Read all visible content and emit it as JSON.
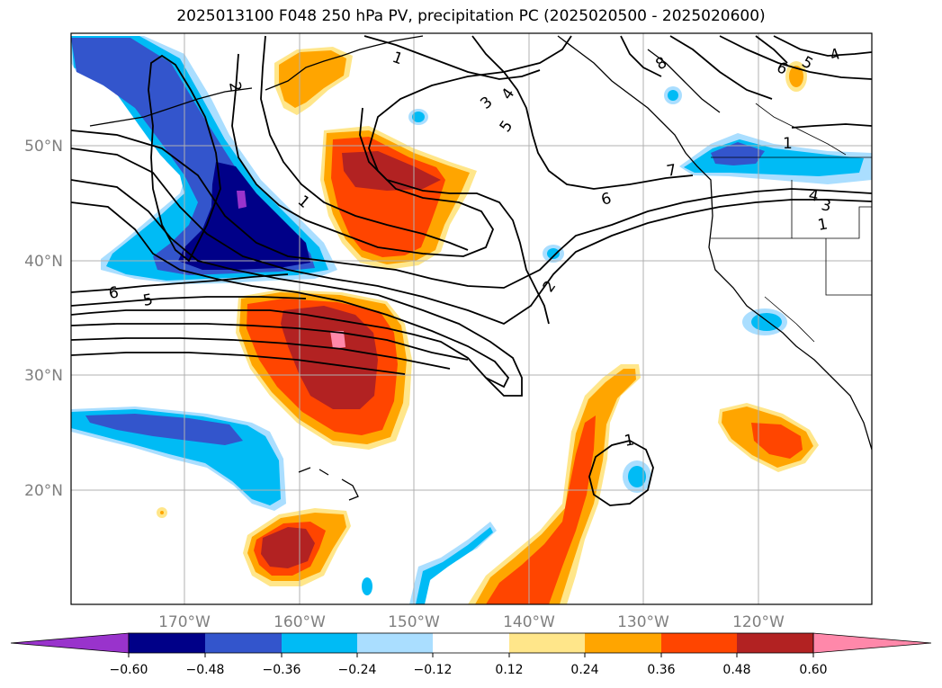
{
  "title": "2025013100 F048 250 hPa PV, precipitation PC (2025020500 - 2025020600)",
  "latitude_labels": [
    "50°N",
    "40°N",
    "30°N",
    "20°N"
  ],
  "longitude_labels": [
    "170°W",
    "160°W",
    "150°W",
    "140°W",
    "130°W",
    "120°W"
  ],
  "contour_labels": [
    "1",
    "2",
    "1",
    "3",
    "4",
    "5",
    "8",
    "6",
    "5",
    "4",
    "7",
    "6",
    "4",
    "3",
    "1",
    "1",
    "6",
    "5",
    "2",
    "1"
  ],
  "colorbar": {
    "tick_labels": [
      "−0.60",
      "−0.48",
      "−0.36",
      "−0.24",
      "−0.12",
      "0.12",
      "0.24",
      "0.36",
      "0.48",
      "0.60"
    ],
    "colors": [
      "#9933cc",
      "#000088",
      "#3355cc",
      "#00bbf5",
      "#aadeff",
      "#ffffff",
      "#ffe68a",
      "#ffa500",
      "#ff4500",
      "#b22222",
      "#ff88aa"
    ]
  },
  "shading_colors": {
    "neg_lt_060": "#9933cc",
    "neg_048": "#000088",
    "neg_036": "#3355cc",
    "neg_024": "#00bbf5",
    "neg_012": "#aadeff",
    "pos_012": "#ffe68a",
    "pos_024": "#ffa500",
    "pos_036": "#ff4500",
    "pos_048": "#b22222",
    "pos_gt_060": "#ff88aa"
  }
}
